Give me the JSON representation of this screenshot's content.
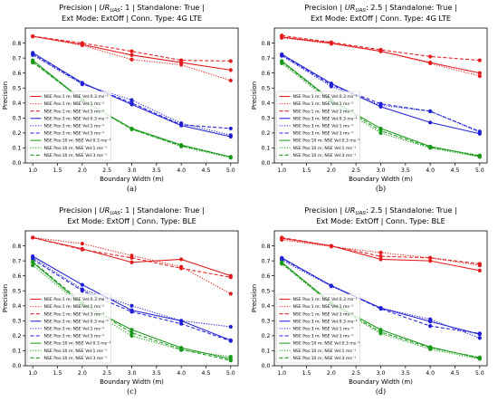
{
  "chart_data": [
    {
      "type": "line",
      "title_line1": "Precision | URUAS: 1 | Standalone: True |",
      "title_line1_parts": {
        "before": "Precision | ",
        "ur": "UR",
        "sub": "UAS",
        "after": ": 1 | Standalone: True |"
      },
      "title_line2": "Ext Mode: ExtOff | Conn. Type: 4G LTE",
      "xlabel": "Boundary  Width (m)",
      "ylabel": "Precision",
      "xlim": [
        0.85,
        5.15
      ],
      "ylim": [
        0.0,
        0.9
      ],
      "xticks": [
        "1.0",
        "1.5",
        "2.0",
        "2.5",
        "3.0",
        "3.5",
        "4.0",
        "4.5",
        "5.0"
      ],
      "yticks": [
        "0.0",
        "0.1",
        "0.2",
        "0.3",
        "0.4",
        "0.5",
        "0.6",
        "0.7",
        "0.8"
      ],
      "caption": "(a)",
      "legend_position": "lower-left",
      "series": [
        {
          "name": "NSE Pos:1 m; NSE Vel:0.3 ms⁻¹",
          "color": "#e41a1c",
          "dash": "solid",
          "x": [
            1,
            2,
            3,
            4,
            5
          ],
          "y": [
            0.845,
            0.79,
            0.72,
            0.67,
            0.62
          ]
        },
        {
          "name": "NSE Pos:1 m; NSE Vel:1 ms⁻¹",
          "color": "#e41a1c",
          "dash": "dotted",
          "x": [
            1,
            2,
            3,
            4,
            5
          ],
          "y": [
            0.845,
            0.785,
            0.69,
            0.655,
            0.55
          ]
        },
        {
          "name": "NSE Pos:1 m; NSE Vel:3 ms⁻¹",
          "color": "#e41a1c",
          "dash": "dashed",
          "x": [
            1,
            2,
            3,
            4,
            5
          ],
          "y": [
            0.845,
            0.8,
            0.745,
            0.685,
            0.68
          ]
        },
        {
          "name": "NSE Pos:3 m; NSE Vel:0.3 ms⁻¹",
          "color": "#1f1fd6",
          "dash": "solid",
          "x": [
            1,
            2,
            3,
            4,
            5
          ],
          "y": [
            0.735,
            0.535,
            0.39,
            0.25,
            0.175
          ]
        },
        {
          "name": "NSE Pos:3 m; NSE Vel:1 ms⁻¹",
          "color": "#1f1fd6",
          "dash": "dotted",
          "x": [
            1,
            2,
            3,
            4,
            5
          ],
          "y": [
            0.72,
            0.525,
            0.42,
            0.265,
            0.185
          ]
        },
        {
          "name": "NSE Pos:3 m; NSE Vel:3 ms⁻¹",
          "color": "#1f1fd6",
          "dash": "dashed",
          "x": [
            1,
            2,
            3,
            4,
            5
          ],
          "y": [
            0.725,
            0.53,
            0.4,
            0.255,
            0.23
          ]
        },
        {
          "name": "NSE Pos:10 m; NSE Vel:0.3 ms⁻¹",
          "color": "#1a9a1a",
          "dash": "solid",
          "x": [
            1,
            2,
            3,
            4,
            5
          ],
          "y": [
            0.685,
            0.42,
            0.23,
            0.12,
            0.04
          ]
        },
        {
          "name": "NSE Pos:10 m; NSE Vel:1 ms⁻¹",
          "color": "#1a9a1a",
          "dash": "dotted",
          "x": [
            1,
            2,
            3,
            4,
            5
          ],
          "y": [
            0.67,
            0.42,
            0.225,
            0.11,
            0.035
          ]
        },
        {
          "name": "NSE Pos:10 m; NSE Vel:3 ms⁻¹",
          "color": "#1a9a1a",
          "dash": "dashed",
          "x": [
            1,
            2,
            3,
            4,
            5
          ],
          "y": [
            0.675,
            0.42,
            0.225,
            0.115,
            0.04
          ]
        }
      ]
    },
    {
      "type": "line",
      "title_line1": "Precision | URUAS: 2.5 | Standalone: True |",
      "title_line1_parts": {
        "before": "Precision | ",
        "ur": "UR",
        "sub": "UAS",
        "after": ": 2.5 | Standalone: True |"
      },
      "title_line2": "Ext Mode: ExtOff | Conn. Type: 4G LTE",
      "xlabel": "Boundary  Width (m)",
      "ylabel": "Precision",
      "xlim": [
        0.85,
        5.15
      ],
      "ylim": [
        0.0,
        0.9
      ],
      "xticks": [
        "1.0",
        "1.5",
        "2.0",
        "2.5",
        "3.0",
        "3.5",
        "4.0",
        "4.5",
        "5.0"
      ],
      "yticks": [
        "0.0",
        "0.1",
        "0.2",
        "0.3",
        "0.4",
        "0.5",
        "0.6",
        "0.7",
        "0.8"
      ],
      "caption": "(b)",
      "legend_position": "lower-left",
      "series": [
        {
          "name": "NSE Pos:1 m; NSE Vel:0.3 ms⁻¹",
          "color": "#e41a1c",
          "dash": "solid",
          "x": [
            1,
            2,
            3,
            4,
            5
          ],
          "y": [
            0.84,
            0.8,
            0.745,
            0.67,
            0.6
          ]
        },
        {
          "name": "NSE Pos:1 m; NSE Vel:1 ms⁻¹",
          "color": "#e41a1c",
          "dash": "dotted",
          "x": [
            1,
            2,
            3,
            4,
            5
          ],
          "y": [
            0.835,
            0.795,
            0.745,
            0.665,
            0.58
          ]
        },
        {
          "name": "NSE Pos:1 m; NSE Vel:3 ms⁻¹",
          "color": "#e41a1c",
          "dash": "dashed",
          "x": [
            1,
            2,
            3,
            4,
            5
          ],
          "y": [
            0.85,
            0.805,
            0.755,
            0.71,
            0.685
          ]
        },
        {
          "name": "NSE Pos:3 m; NSE Vel:0.3 ms⁻¹",
          "color": "#1f1fd6",
          "dash": "solid",
          "x": [
            1,
            2,
            3,
            4,
            5
          ],
          "y": [
            0.725,
            0.53,
            0.375,
            0.27,
            0.195
          ]
        },
        {
          "name": "NSE Pos:3 m; NSE Vel:1 ms⁻¹",
          "color": "#1f1fd6",
          "dash": "dotted",
          "x": [
            1,
            2,
            3,
            4,
            5
          ],
          "y": [
            0.715,
            0.51,
            0.385,
            0.345,
            0.205
          ]
        },
        {
          "name": "NSE Pos:3 m; NSE Vel:3 ms⁻¹",
          "color": "#1f1fd6",
          "dash": "dashed",
          "x": [
            1,
            2,
            3,
            4,
            5
          ],
          "y": [
            0.72,
            0.52,
            0.395,
            0.345,
            0.21
          ]
        },
        {
          "name": "NSE Pos:10 m; NSE Vel:0.3 ms⁻¹",
          "color": "#1a9a1a",
          "dash": "solid",
          "x": [
            1,
            2,
            3,
            4,
            5
          ],
          "y": [
            0.68,
            0.42,
            0.23,
            0.11,
            0.045
          ]
        },
        {
          "name": "NSE Pos:10 m; NSE Vel:1 ms⁻¹",
          "color": "#1a9a1a",
          "dash": "dotted",
          "x": [
            1,
            2,
            3,
            4,
            5
          ],
          "y": [
            0.665,
            0.405,
            0.2,
            0.1,
            0.04
          ]
        },
        {
          "name": "NSE Pos:10 m; NSE Vel:3 ms⁻¹",
          "color": "#1a9a1a",
          "dash": "dashed",
          "x": [
            1,
            2,
            3,
            4,
            5
          ],
          "y": [
            0.675,
            0.415,
            0.215,
            0.105,
            0.05
          ]
        }
      ]
    },
    {
      "type": "line",
      "title_line1": "Precision | URUAS: 1 | Standalone: True |",
      "title_line1_parts": {
        "before": "Precision | ",
        "ur": "UR",
        "sub": "UAS",
        "after": ": 1 | Standalone: True |"
      },
      "title_line2": "Ext Mode: ExtOff | Conn. Type: BLE",
      "xlabel": "Boundary  Width (m)",
      "ylabel": "Precision",
      "xlim": [
        0.85,
        5.15
      ],
      "ylim": [
        0.0,
        0.9
      ],
      "xticks": [
        "1.0",
        "1.5",
        "2.0",
        "2.5",
        "3.0",
        "3.5",
        "4.0",
        "4.5",
        "5.0"
      ],
      "yticks": [
        "0.0",
        "0.1",
        "0.2",
        "0.3",
        "0.4",
        "0.5",
        "0.6",
        "0.7",
        "0.8"
      ],
      "caption": "(c)",
      "legend_position": "lower-left",
      "series": [
        {
          "name": "NSE Pos:1 m; NSE Vel:0.3 ms⁻¹",
          "color": "#e41a1c",
          "dash": "solid",
          "x": [
            1,
            2,
            3,
            4,
            5
          ],
          "y": [
            0.855,
            0.78,
            0.69,
            0.71,
            0.6
          ]
        },
        {
          "name": "NSE Pos:1 m; NSE Vel:1 ms⁻¹",
          "color": "#e41a1c",
          "dash": "dotted",
          "x": [
            1,
            2,
            3,
            4,
            5
          ],
          "y": [
            0.855,
            0.815,
            0.735,
            0.66,
            0.48
          ]
        },
        {
          "name": "NSE Pos:1 m; NSE Vel:3 ms⁻¹",
          "color": "#e41a1c",
          "dash": "dashed",
          "x": [
            1,
            2,
            3,
            4,
            5
          ],
          "y": [
            0.855,
            0.775,
            0.72,
            0.65,
            0.59
          ]
        },
        {
          "name": "NSE Pos:3 m; NSE Vel:0.3 ms⁻¹",
          "color": "#1f1fd6",
          "dash": "solid",
          "x": [
            1,
            2,
            3,
            4,
            5
          ],
          "y": [
            0.73,
            0.54,
            0.37,
            0.3,
            0.17
          ]
        },
        {
          "name": "NSE Pos:3 m; NSE Vel:1 ms⁻¹",
          "color": "#1f1fd6",
          "dash": "dotted",
          "x": [
            1,
            2,
            3,
            4,
            5
          ],
          "y": [
            0.72,
            0.51,
            0.4,
            0.3,
            0.26
          ]
        },
        {
          "name": "NSE Pos:3 m; NSE Vel:3 ms⁻¹",
          "color": "#1f1fd6",
          "dash": "dashed",
          "x": [
            1,
            2,
            3,
            4,
            5
          ],
          "y": [
            0.71,
            0.5,
            0.36,
            0.28,
            0.165
          ]
        },
        {
          "name": "NSE Pos:10 m; NSE Vel:0.3 ms⁻¹",
          "color": "#1a9a1a",
          "dash": "solid",
          "x": [
            1,
            2,
            3,
            4,
            5
          ],
          "y": [
            0.69,
            0.41,
            0.24,
            0.12,
            0.045
          ]
        },
        {
          "name": "NSE Pos:10 m; NSE Vel:1 ms⁻¹",
          "color": "#1a9a1a",
          "dash": "dotted",
          "x": [
            1,
            2,
            3,
            4,
            5
          ],
          "y": [
            0.67,
            0.4,
            0.2,
            0.105,
            0.06
          ]
        },
        {
          "name": "NSE Pos:10 m; NSE Vel:3 ms⁻¹",
          "color": "#1a9a1a",
          "dash": "dashed",
          "x": [
            1,
            2,
            3,
            4,
            5
          ],
          "y": [
            0.695,
            0.42,
            0.22,
            0.11,
            0.035
          ]
        }
      ]
    },
    {
      "type": "line",
      "title_line1": "Precision | URUAS: 2.5 | Standalone: True |",
      "title_line1_parts": {
        "before": "Precision | ",
        "ur": "UR",
        "sub": "UAS",
        "after": ": 2.5 | Standalone: True |"
      },
      "title_line2": "Ext Mode: ExtOff | Conn. Type: BLE",
      "xlabel": "Boundary  Width (m)",
      "ylabel": "Precision",
      "xlim": [
        0.85,
        5.15
      ],
      "ylim": [
        0.0,
        0.9
      ],
      "xticks": [
        "1.0",
        "1.5",
        "2.0",
        "2.5",
        "3.0",
        "3.5",
        "4.0",
        "4.5",
        "5.0"
      ],
      "yticks": [
        "0.0",
        "0.1",
        "0.2",
        "0.3",
        "0.4",
        "0.5",
        "0.6",
        "0.7",
        "0.8"
      ],
      "caption": "(d)",
      "legend_position": "lower-left",
      "series": [
        {
          "name": "NSE Pos:1 m; NSE Vel:0.3 ms⁻¹",
          "color": "#e41a1c",
          "dash": "solid",
          "x": [
            1,
            2,
            3,
            4,
            5
          ],
          "y": [
            0.85,
            0.8,
            0.71,
            0.7,
            0.635
          ]
        },
        {
          "name": "NSE Pos:1 m; NSE Vel:1 ms⁻¹",
          "color": "#e41a1c",
          "dash": "dotted",
          "x": [
            1,
            2,
            3,
            4,
            5
          ],
          "y": [
            0.84,
            0.795,
            0.755,
            0.72,
            0.67
          ]
        },
        {
          "name": "NSE Pos:1 m; NSE Vel:3 ms⁻¹",
          "color": "#e41a1c",
          "dash": "dashed",
          "x": [
            1,
            2,
            3,
            4,
            5
          ],
          "y": [
            0.855,
            0.8,
            0.73,
            0.72,
            0.68
          ]
        },
        {
          "name": "NSE Pos:3 m; NSE Vel:0.3 ms⁻¹",
          "color": "#1f1fd6",
          "dash": "solid",
          "x": [
            1,
            2,
            3,
            4,
            5
          ],
          "y": [
            0.72,
            0.535,
            0.385,
            0.295,
            0.21
          ]
        },
        {
          "name": "NSE Pos:3 m; NSE Vel:1 ms⁻¹",
          "color": "#1f1fd6",
          "dash": "dotted",
          "x": [
            1,
            2,
            3,
            4,
            5
          ],
          "y": [
            0.705,
            0.53,
            0.385,
            0.31,
            0.185
          ]
        },
        {
          "name": "NSE Pos:3 m; NSE Vel:3 ms⁻¹",
          "color": "#1f1fd6",
          "dash": "dashed",
          "x": [
            1,
            2,
            3,
            4,
            5
          ],
          "y": [
            0.715,
            0.535,
            0.38,
            0.265,
            0.215
          ]
        },
        {
          "name": "NSE Pos:10 m; NSE Vel:0.3 ms⁻¹",
          "color": "#1a9a1a",
          "dash": "solid",
          "x": [
            1,
            2,
            3,
            4,
            5
          ],
          "y": [
            0.69,
            0.42,
            0.24,
            0.125,
            0.05
          ]
        },
        {
          "name": "NSE Pos:10 m; NSE Vel:1 ms⁻¹",
          "color": "#1a9a1a",
          "dash": "dotted",
          "x": [
            1,
            2,
            3,
            4,
            5
          ],
          "y": [
            0.68,
            0.41,
            0.215,
            0.11,
            0.045
          ]
        },
        {
          "name": "NSE Pos:10 m; NSE Vel:3 ms⁻¹",
          "color": "#1a9a1a",
          "dash": "dashed",
          "x": [
            1,
            2,
            3,
            4,
            5
          ],
          "y": [
            0.685,
            0.415,
            0.225,
            0.12,
            0.055
          ]
        }
      ]
    }
  ]
}
